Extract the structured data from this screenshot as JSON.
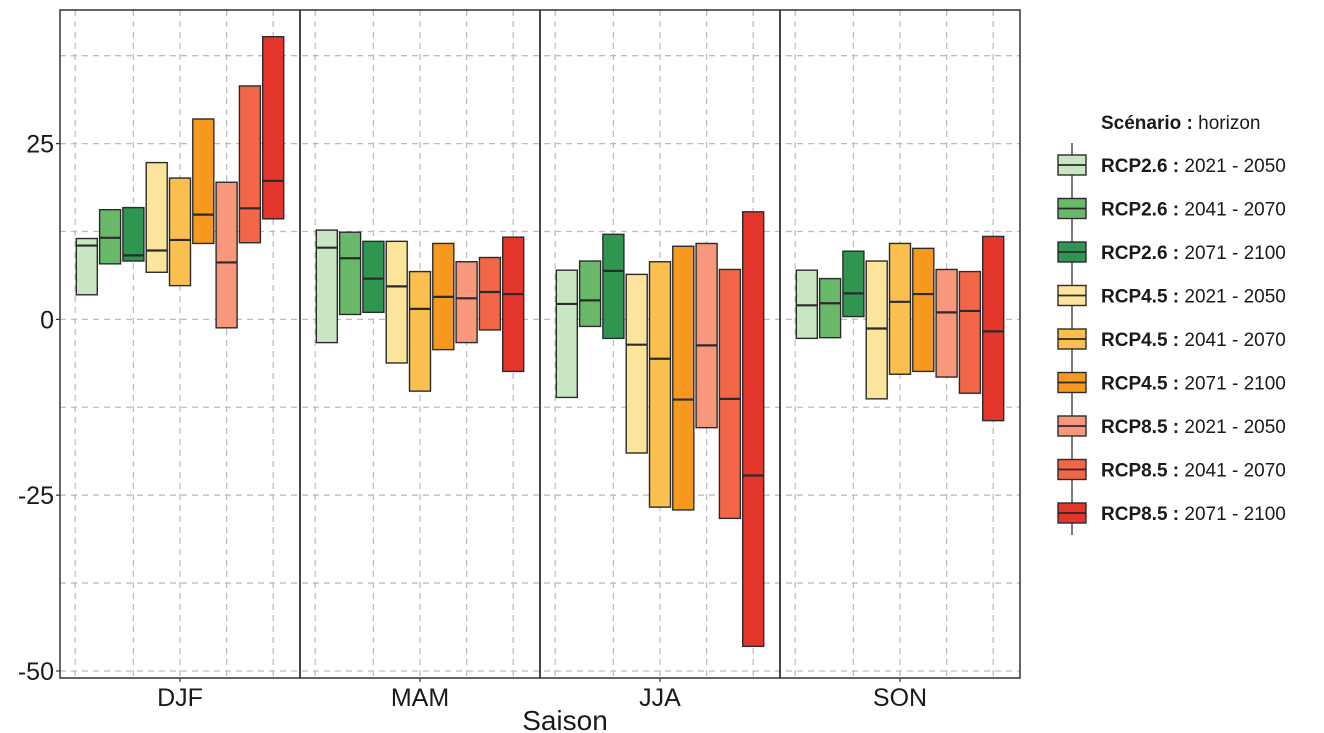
{
  "chart_data": {
    "type": "boxplot-range",
    "title": "",
    "xlabel": "Saison",
    "ylabel": "",
    "ylim": [
      -51,
      44
    ],
    "yticks": [
      -50,
      -25,
      0,
      25
    ],
    "ytick_labels": [
      "-50",
      "-25",
      "0",
      "25"
    ],
    "grid": true,
    "legend_position": "right",
    "legend_title_bold": "Scénario :",
    "legend_title_rest": " horizon",
    "categories": [
      "DJF",
      "MAM",
      "JJA",
      "SON"
    ],
    "series": [
      {
        "scenario": "RCP2.6",
        "horizon": "2021 - 2050",
        "color": "#c7e6c1"
      },
      {
        "scenario": "RCP2.6",
        "horizon": "2041 - 2070",
        "color": "#6ab96b"
      },
      {
        "scenario": "RCP2.6",
        "horizon": "2071 - 2100",
        "color": "#2e9650"
      },
      {
        "scenario": "RCP4.5",
        "horizon": "2021 - 2050",
        "color": "#fde49b"
      },
      {
        "scenario": "RCP4.5",
        "horizon": "2041 - 2070",
        "color": "#fbbf4f"
      },
      {
        "scenario": "RCP4.5",
        "horizon": "2071 - 2100",
        "color": "#f7981f"
      },
      {
        "scenario": "RCP8.5",
        "horizon": "2021 - 2050",
        "color": "#f7987c"
      },
      {
        "scenario": "RCP8.5",
        "horizon": "2041 - 2070",
        "color": "#f26748"
      },
      {
        "scenario": "RCP8.5",
        "horizon": "2071 - 2100",
        "color": "#e3352c"
      }
    ],
    "ranges": [
      [
        [
          3.5,
          11.5,
          10.5
        ],
        [
          7.9,
          15.6,
          11.6
        ],
        [
          8.3,
          15.9,
          9.1
        ],
        [
          6.7,
          22.3,
          9.8
        ],
        [
          4.8,
          20.1,
          11.3
        ],
        [
          10.8,
          28.5,
          14.9
        ],
        [
          -1.2,
          19.5,
          8.1
        ],
        [
          10.9,
          33.2,
          15.8
        ],
        [
          14.3,
          40.2,
          19.7
        ]
      ],
      [
        [
          -3.3,
          12.7,
          10.2
        ],
        [
          0.7,
          12.4,
          8.7
        ],
        [
          1.0,
          11.1,
          5.8
        ],
        [
          -6.2,
          11.1,
          4.7
        ],
        [
          -10.2,
          6.8,
          1.5
        ],
        [
          -4.3,
          10.8,
          3.2
        ],
        [
          -3.3,
          8.2,
          3.0
        ],
        [
          -1.5,
          8.8,
          3.9
        ],
        [
          -7.4,
          11.7,
          3.6
        ]
      ],
      [
        [
          -11.1,
          7.0,
          2.2
        ],
        [
          -1.0,
          8.3,
          2.7
        ],
        [
          -2.7,
          12.1,
          6.9
        ],
        [
          -19.0,
          6.4,
          -3.6
        ],
        [
          -26.7,
          8.2,
          -5.6
        ],
        [
          -27.1,
          10.4,
          -11.4
        ],
        [
          -15.4,
          10.8,
          -3.7
        ],
        [
          -28.3,
          7.1,
          -11.3
        ],
        [
          -46.5,
          15.3,
          -22.2
        ]
      ],
      [
        [
          -2.7,
          7.0,
          2.0
        ],
        [
          -2.6,
          5.8,
          2.3
        ],
        [
          0.4,
          9.7,
          3.7
        ],
        [
          -11.3,
          8.3,
          -1.3
        ],
        [
          -7.8,
          10.8,
          2.5
        ],
        [
          -7.4,
          10.1,
          3.6
        ],
        [
          -8.2,
          7.1,
          1.0
        ],
        [
          -10.5,
          6.8,
          1.2
        ],
        [
          -14.4,
          11.8,
          -1.7
        ]
      ]
    ]
  }
}
